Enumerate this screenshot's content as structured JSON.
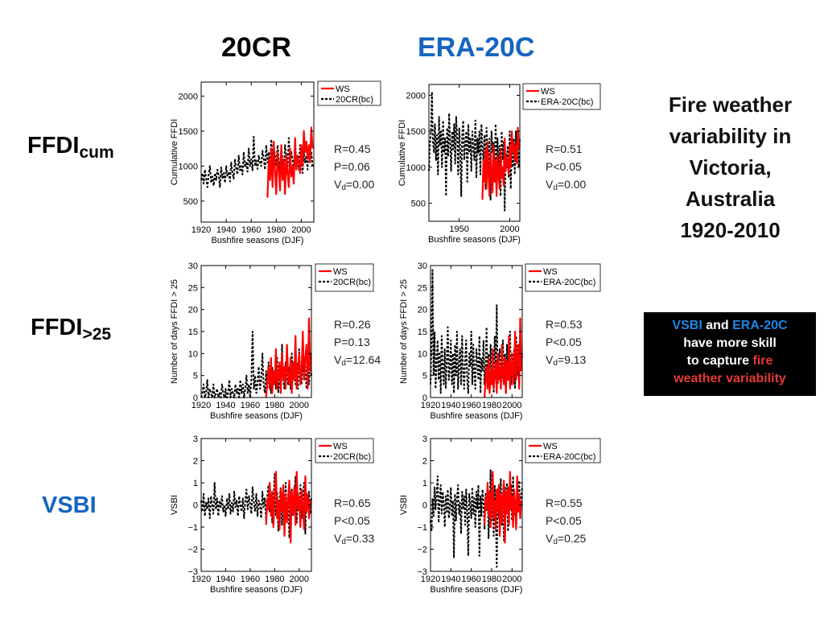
{
  "column_titles": [
    {
      "text": "20CR",
      "color": "#000000"
    },
    {
      "text": "ERA-20C",
      "color": "#1565C0"
    }
  ],
  "row_titles": [
    {
      "main": "FFDI",
      "sub": "cum",
      "color": "#000000"
    },
    {
      "main": "FFDI",
      "sub": ">25",
      "color": "#000000"
    },
    {
      "main": "VSBI",
      "sub": "",
      "color": "#1565C0"
    }
  ],
  "side_title": [
    "Fire weather",
    "variability in",
    "Victoria,",
    "Australia",
    "1920-2010"
  ],
  "callout": {
    "vsbi": "VSBI",
    "and": " and ",
    "era": "ERA-20C",
    "line2": "have more skill",
    "line3a": "to capture ",
    "line3b": "fire",
    "line4": "weather variability",
    "blue": "#1565C0",
    "red": "#D32F2F"
  },
  "colors": {
    "ws": "#FF0000",
    "reanalysis": "#000000"
  },
  "chart_data": [
    {
      "type": "line",
      "id": "p11",
      "xlabel": "Bushfire seasons (DJF)",
      "ylabel": "Cumulative FFDI",
      "xlim": [
        1920,
        2010
      ],
      "ylim": [
        200,
        2200
      ],
      "xticks": [
        1920,
        1940,
        1960,
        1980,
        2000
      ],
      "yticks": [
        500,
        1000,
        1500,
        2000
      ],
      "stats": [
        "R=0.45",
        "P=0.06",
        "0.00"
      ],
      "series": [
        {
          "name": "20CR(bc)",
          "x0": 1920,
          "step": 1,
          "values": [
            800,
            900,
            750,
            950,
            820,
            700,
            880,
            1000,
            760,
            850,
            720,
            900,
            800,
            950,
            870,
            700,
            980,
            830,
            900,
            760,
            1000,
            850,
            920,
            780,
            1050,
            900,
            820,
            1100,
            960,
            880,
            1150,
            940,
            1000,
            880,
            1200,
            980,
            1050,
            920,
            1250,
            1000,
            1100,
            940,
            1420,
            1000,
            1080,
            960,
            1150,
            1050,
            1000,
            1220,
            1100,
            950,
            1300,
            1050,
            1200,
            980,
            1380,
            1100,
            1280,
            1150,
            1000,
            1300,
            1100,
            950,
            1250,
            1100,
            850,
            1300,
            1150,
            1000,
            1400,
            1050,
            1200,
            1100,
            900,
            1250,
            1050,
            1150,
            950,
            1300,
            1100,
            900,
            1200,
            1050,
            1150,
            950,
            1250,
            1100,
            1200,
            1000
          ]
        },
        {
          "name": "WS",
          "x0": 1973,
          "step": 1,
          "values": [
            550,
            1100,
            800,
            1250,
            700,
            1350,
            900,
            600,
            1200,
            950,
            650,
            1300,
            800,
            1100,
            600,
            1150,
            900,
            700,
            1250,
            850,
            1000,
            750,
            1400,
            950,
            1150,
            1050,
            900,
            1300,
            1000,
            1500,
            1200,
            1350,
            1100,
            1300,
            1050,
            1550,
            1250
          ]
        }
      ]
    },
    {
      "type": "line",
      "id": "p12",
      "xlabel": "Bushfire seasons (DJF)",
      "ylabel": "Cumulative FFDI",
      "xlim": [
        1920,
        2010
      ],
      "ylim": [
        250,
        2150
      ],
      "xticks": [
        1950,
        2000
      ],
      "yticks": [
        500,
        1000,
        1500,
        2000
      ],
      "stats": [
        "R=0.51",
        "P<0.05",
        "0.00"
      ],
      "series": [
        {
          "name": "ERA-20C(bc)",
          "x0": 1920,
          "step": 1,
          "values": [
            950,
            1300,
            1500,
            2050,
            1350,
            1200,
            1600,
            1100,
            1450,
            900,
            1700,
            1300,
            1500,
            1000,
            1650,
            1200,
            1400,
            600,
            1550,
            1150,
            1750,
            1350,
            950,
            1500,
            1250,
            1600,
            1050,
            1700,
            1400,
            900,
            1550,
            1250,
            600,
            1450,
            1650,
            1100,
            1350,
            1500,
            800,
            1600,
            1200,
            1400,
            950,
            1500,
            1300,
            1100,
            1650,
            850,
            1400,
            1200,
            1500,
            900,
            1600,
            1300,
            1050,
            1450,
            700,
            1550,
            1250,
            1000,
            1400,
            550,
            1500,
            1200,
            1350,
            800,
            1600,
            1100,
            1400,
            900,
            1300,
            600,
            1500,
            1100,
            1350,
            400,
            1200,
            1000,
            1300,
            850,
            1500,
            700,
            1300,
            1000,
            1400,
            900,
            1500,
            1100,
            1300,
            1000,
            1400
          ]
        },
        {
          "name": "WS",
          "x0": 1973,
          "step": 1,
          "values": [
            550,
            1100,
            800,
            1250,
            700,
            1350,
            900,
            600,
            1200,
            950,
            650,
            1300,
            800,
            1100,
            600,
            1150,
            900,
            700,
            1250,
            850,
            1000,
            750,
            1400,
            950,
            1150,
            1050,
            900,
            1300,
            1000,
            1500,
            1200,
            1350,
            1100,
            1300,
            1050,
            1550,
            1250
          ]
        }
      ]
    },
    {
      "type": "line",
      "id": "p21",
      "xlabel": "Bushfire seasons (DJF)",
      "ylabel": "Number of days FFDI > 25",
      "xlim": [
        1920,
        2010
      ],
      "ylim": [
        0,
        30
      ],
      "xticks": [
        1920,
        1940,
        1960,
        1980,
        2000
      ],
      "yticks": [
        0,
        5,
        10,
        15,
        20,
        25,
        30
      ],
      "stats": [
        "R=0.26",
        "P=0.13",
        "12.64"
      ],
      "series": [
        {
          "name": "20CR(bc)",
          "x0": 1920,
          "step": 1,
          "values": [
            0,
            1,
            3,
            0,
            1,
            4,
            0,
            2,
            1,
            0,
            3,
            0,
            1,
            2,
            0,
            1,
            0,
            3,
            1,
            0,
            2,
            0,
            1,
            4,
            0,
            2,
            1,
            0,
            3,
            1,
            2,
            0,
            4,
            1,
            3,
            0,
            2,
            5,
            1,
            3,
            0,
            4,
            15,
            2,
            5,
            1,
            3,
            7,
            2,
            4,
            10,
            3,
            1,
            6,
            2,
            8,
            4,
            1,
            7,
            3,
            5,
            2,
            9,
            1,
            6,
            3,
            12,
            4,
            2,
            8,
            5,
            3,
            7,
            2,
            10,
            4,
            6,
            3,
            8,
            2,
            11,
            5,
            3,
            9,
            4,
            7,
            2,
            6,
            3,
            10,
            5
          ]
        },
        {
          "name": "WS",
          "x0": 1973,
          "step": 1,
          "values": [
            0,
            4,
            7,
            2,
            9,
            1,
            6,
            3,
            11,
            2,
            5,
            8,
            1,
            10,
            4,
            7,
            2,
            12,
            5,
            3,
            9,
            1,
            8,
            4,
            14,
            2,
            7,
            10,
            3,
            6,
            15,
            4,
            9,
            12,
            2,
            18,
            6
          ]
        }
      ]
    },
    {
      "type": "line",
      "id": "p22",
      "xlabel": "Bushfire seasons (DJF)",
      "ylabel": "Number of days FFDI > 25",
      "xlim": [
        1920,
        2010
      ],
      "ylim": [
        0,
        30
      ],
      "xticks": [
        1920,
        1940,
        1960,
        1980,
        2000
      ],
      "yticks": [
        0,
        5,
        10,
        15,
        20,
        25,
        30
      ],
      "stats": [
        "R=0.53",
        "P<0.05",
        "9.13"
      ],
      "series": [
        {
          "name": "ERA-20C(bc)",
          "x0": 1920,
          "step": 1,
          "values": [
            3,
            12,
            29,
            5,
            15,
            2,
            8,
            13,
            4,
            10,
            1,
            14,
            6,
            3,
            11,
            2,
            9,
            16,
            4,
            7,
            13,
            3,
            10,
            1,
            12,
            5,
            15,
            2,
            8,
            11,
            3,
            14,
            6,
            2,
            9,
            13,
            4,
            1,
            10,
            7,
            15,
            3,
            12,
            5,
            2,
            11,
            8,
            4,
            14,
            1,
            9,
            6,
            13,
            3,
            7,
            16,
            2,
            10,
            5,
            12,
            4,
            8,
            1,
            14,
            6,
            21,
            3,
            9,
            11,
            2,
            7,
            13,
            5,
            10,
            1,
            12,
            4,
            8,
            15,
            3,
            9,
            6,
            11,
            2,
            14,
            5,
            8,
            3,
            12,
            6,
            10
          ]
        },
        {
          "name": "WS",
          "x0": 1973,
          "step": 1,
          "values": [
            0,
            4,
            7,
            2,
            9,
            1,
            6,
            3,
            11,
            2,
            5,
            8,
            1,
            10,
            4,
            7,
            2,
            12,
            5,
            3,
            9,
            1,
            8,
            4,
            14,
            2,
            7,
            10,
            3,
            6,
            15,
            4,
            9,
            12,
            2,
            18,
            6
          ]
        }
      ]
    },
    {
      "type": "line",
      "id": "p31",
      "xlabel": "Bushfire seasons (DJF)",
      "ylabel": "VSBI",
      "xlim": [
        1920,
        2010
      ],
      "ylim": [
        -3,
        3
      ],
      "xticks": [
        1920,
        1940,
        1960,
        1980,
        2000
      ],
      "yticks": [
        -3,
        -2,
        -1,
        0,
        1,
        2,
        3
      ],
      "stats": [
        "R=0.65",
        "P<0.05",
        "0.33"
      ],
      "series": [
        {
          "name": "20CR(bc)",
          "x0": 1920,
          "step": 1,
          "values": [
            0.2,
            -0.3,
            0.5,
            -0.5,
            0.1,
            -0.2,
            0.3,
            -0.6,
            0.4,
            0.0,
            -0.4,
            1.0,
            -0.2,
            0.3,
            -0.5,
            0.2,
            -0.1,
            0.4,
            -0.3,
            0.0,
            -0.5,
            0.3,
            -0.2,
            0.5,
            -0.4,
            0.1,
            -0.3,
            0.6,
            -0.1,
            0.2,
            -0.5,
            0.4,
            0.0,
            -0.3,
            0.3,
            -0.6,
            0.2,
            0.7,
            -0.2,
            0.4,
            0.0,
            -0.4,
            0.8,
            0.1,
            -0.3,
            0.5,
            -0.5,
            0.2,
            0.0,
            -0.6,
            0.6,
            -0.1,
            0.3,
            -0.7,
            0.4,
            0.9,
            -0.3,
            0.5,
            -0.8,
            0.2,
            1.4,
            -0.5,
            0.6,
            -1.2,
            0.3,
            0.8,
            -0.9,
            0.5,
            -0.4,
            1.0,
            -0.6,
            0.2,
            -1.5,
            0.4,
            0.7,
            -0.5,
            0.3,
            1.3,
            -0.8,
            0.5,
            -0.3,
            0.9,
            -0.6,
            0.1,
            1.0,
            -1.3,
            0.4,
            -0.2,
            0.6,
            -0.4,
            0.3
          ]
        },
        {
          "name": "WS",
          "x0": 1973,
          "step": 1,
          "values": [
            -0.9,
            0.3,
            -0.2,
            1.0,
            -0.5,
            0.6,
            -1.0,
            0.4,
            1.5,
            -0.6,
            0.2,
            -1.1,
            0.7,
            -0.3,
            0.9,
            -1.4,
            0.5,
            -0.8,
            0.3,
            1.1,
            -1.7,
            0.6,
            -0.4,
            0.8,
            -0.9,
            1.5,
            -0.2,
            0.4,
            -1.0,
            0.7,
            0.1,
            -1.1,
            1.3,
            -0.3,
            0.5,
            -0.6,
            0.2
          ]
        }
      ]
    },
    {
      "type": "line",
      "id": "p32",
      "xlabel": "Bushfire seasons (DJF)",
      "ylabel": "VSBI",
      "xlim": [
        1920,
        2010
      ],
      "ylim": [
        -3,
        3
      ],
      "xticks": [
        1920,
        1940,
        1960,
        1980,
        2000
      ],
      "yticks": [
        -3,
        -2,
        -1,
        0,
        1,
        2,
        3
      ],
      "stats": [
        "R=0.55",
        "P<0.05",
        "0.25"
      ],
      "series": [
        {
          "name": "ERA-20C(bc)",
          "x0": 1920,
          "step": 1,
          "values": [
            -0.7,
            -1.2,
            0.3,
            -0.5,
            0.8,
            -0.2,
            0.5,
            1.3,
            -0.8,
            0.2,
            0.9,
            -0.4,
            0.6,
            0.1,
            -1.0,
            0.4,
            -0.3,
            0.7,
            -0.6,
            -0.1,
            0.8,
            -0.5,
            0.2,
            -2.4,
            0.5,
            -0.7,
            0.3,
            0.9,
            -0.4,
            0.1,
            -1.3,
            0.6,
            -0.2,
            0.4,
            -0.9,
            0.7,
            -0.3,
            -2.3,
            0.5,
            0.1,
            -0.6,
            0.8,
            -0.4,
            0.3,
            -1.0,
            0.6,
            -0.2,
            0.9,
            -2.3,
            0.4,
            -0.5,
            0.7,
            0.1,
            -1.1,
            0.5,
            -0.3,
            0.8,
            -1.5,
            0.3,
            1.6,
            -0.7,
            0.5,
            -1.4,
            0.9,
            -0.2,
            -2.8,
            0.7,
            -0.6,
            0.4,
            1.2,
            -0.9,
            0.3,
            -1.6,
            0.8,
            -0.4,
            1.0,
            -1.2,
            0.5,
            -0.2,
            0.9,
            -0.7,
            1.3,
            -0.5,
            0.2,
            -1.0,
            0.7,
            -0.3,
            1.1,
            -0.6,
            0.4,
            0.8
          ]
        },
        {
          "name": "WS",
          "x0": 1973,
          "step": 1,
          "values": [
            -0.9,
            0.3,
            -0.2,
            1.0,
            -0.5,
            0.6,
            -1.0,
            0.4,
            1.5,
            -0.6,
            0.2,
            -1.1,
            0.7,
            -0.3,
            0.9,
            -1.4,
            0.5,
            -0.8,
            0.3,
            1.1,
            -1.7,
            0.6,
            -0.4,
            0.8,
            -0.9,
            1.5,
            -0.2,
            0.4,
            -1.0,
            0.7,
            0.1,
            -1.1,
            1.3,
            -0.3,
            0.5,
            -0.6,
            0.2
          ]
        }
      ]
    }
  ]
}
